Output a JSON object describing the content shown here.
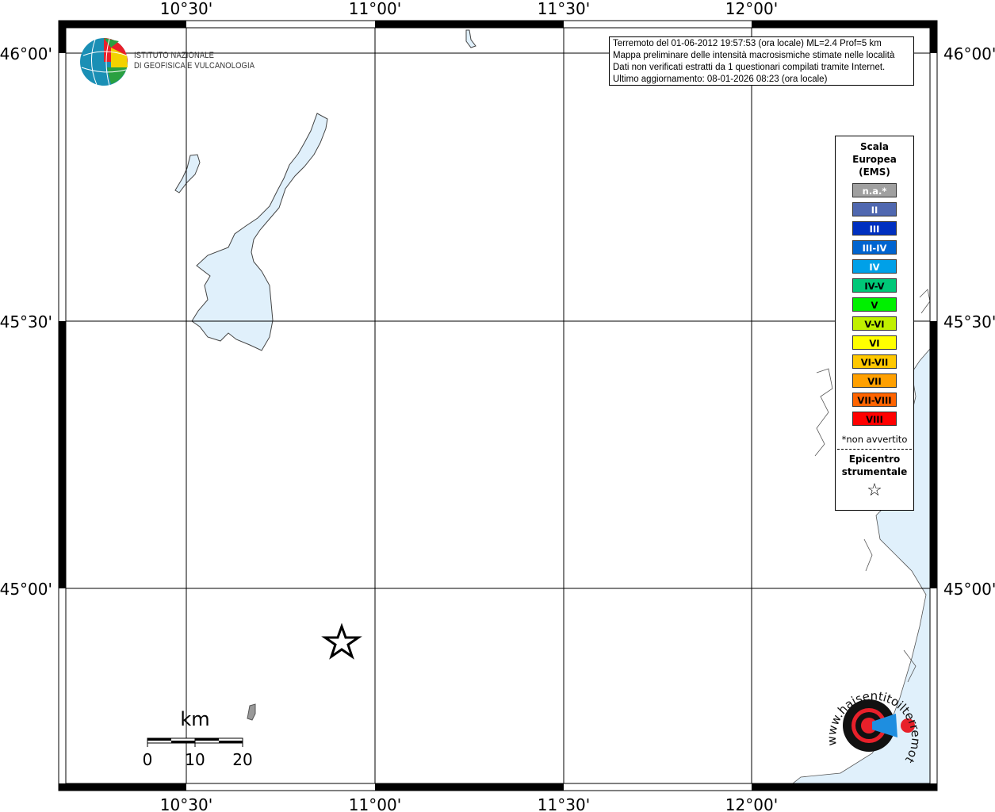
{
  "map": {
    "longitude_labels": [
      "10°30'",
      "11°00'",
      "11°30'",
      "12°00'"
    ],
    "latitude_labels": [
      "46°00'",
      "45°30'",
      "45°00'"
    ],
    "epicenter_icon": "star-outline-icon",
    "scale_bar": {
      "unit": "km",
      "ticks": [
        "0",
        "10",
        "20"
      ]
    },
    "water_color": "#e0f0fb"
  },
  "logo": {
    "line1": "ISTITUTO NAZIONALE",
    "line2": "DI GEOFISICA E VULCANOLOGIA"
  },
  "info": {
    "line1": "Terremoto del 01-06-2012 19:57:53 (ora locale) ML=2.4 Prof=5 km",
    "line2": "Mappa preliminare delle intensità macrosismiche stimate nelle località",
    "line3": "Dati non verificati estratti da 1 questionari compilati tramite Internet.",
    "line4": "Ultimo aggiornamento: 08-01-2026 08:23 (ora locale)"
  },
  "legend": {
    "title1": "Scala",
    "title2": "Europea",
    "title3": "(EMS)",
    "items": [
      {
        "label": "n.a.*",
        "color": "#a0a0a0",
        "text": "#ffffff"
      },
      {
        "label": "II",
        "color": "#5068b0",
        "text": "#ffffff"
      },
      {
        "label": "III",
        "color": "#0030c0",
        "text": "#ffffff"
      },
      {
        "label": "III-IV",
        "color": "#0064d0",
        "text": "#ffffff"
      },
      {
        "label": "IV",
        "color": "#00a0e8",
        "text": "#ffffff"
      },
      {
        "label": "IV-V",
        "color": "#00c878",
        "text": "#000000"
      },
      {
        "label": "V",
        "color": "#00f000",
        "text": "#000000"
      },
      {
        "label": "V-VI",
        "color": "#c0f000",
        "text": "#000000"
      },
      {
        "label": "VI",
        "color": "#ffff00",
        "text": "#000000"
      },
      {
        "label": "VI-VII",
        "color": "#ffc800",
        "text": "#000000"
      },
      {
        "label": "VII",
        "color": "#ffa000",
        "text": "#000000"
      },
      {
        "label": "VII-VIII",
        "color": "#ff6400",
        "text": "#000000"
      },
      {
        "label": "VIII",
        "color": "#ff0000",
        "text": "#000000"
      }
    ],
    "note": "*non avvertito",
    "epicenter1": "Epicentro",
    "epicenter2": "strumentale"
  },
  "watermark": {
    "text": "www.haisentitoilterremoto.it"
  }
}
